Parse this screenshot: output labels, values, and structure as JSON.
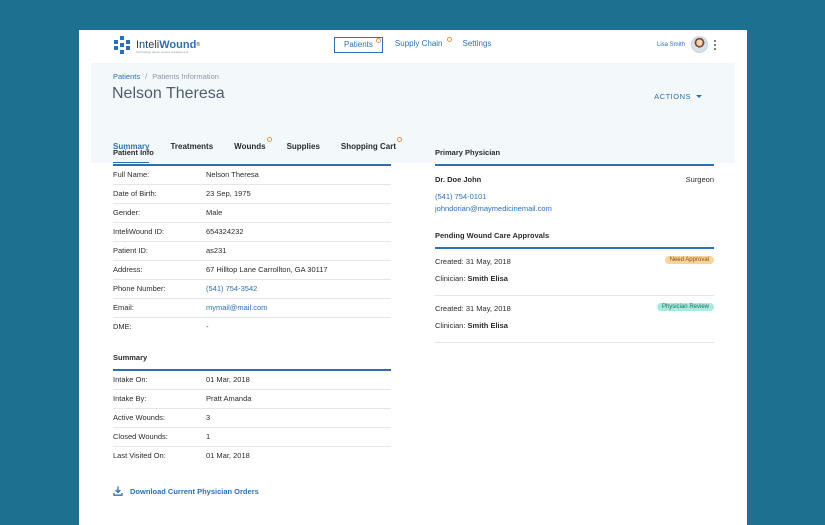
{
  "brand": {
    "name_light": "Inteli",
    "name_bold": "Wound",
    "registered": "®",
    "tagline": "Technology driven wound management"
  },
  "nav": {
    "items": [
      {
        "label": "Patients",
        "active": true,
        "notify": true
      },
      {
        "label": "Supply Chain",
        "active": false,
        "notify": true
      },
      {
        "label": "Settings",
        "active": false,
        "notify": false
      }
    ]
  },
  "user": {
    "name": "Lisa Smith",
    "avatar_icon": "avatar-photo",
    "menu_icon": "kebab-icon"
  },
  "breadcrumb": {
    "root": "Patients",
    "separator": "/",
    "current": "Patients Information"
  },
  "patient_title": "Nelson Theresa",
  "actions_label": "ACTIONS",
  "tabs": [
    {
      "label": "Summary",
      "active": true,
      "notify": false
    },
    {
      "label": "Treatments",
      "active": false,
      "notify": false
    },
    {
      "label": "Wounds",
      "active": false,
      "notify": true
    },
    {
      "label": "Supplies",
      "active": false,
      "notify": false
    },
    {
      "label": "Shopping Cart",
      "active": false,
      "notify": true
    }
  ],
  "patient_info": {
    "title": "Patient Info",
    "rows": [
      {
        "label": "Full Name:",
        "value": "Nelson Theresa"
      },
      {
        "label": "Date of Birth:",
        "value": "23 Sep, 1975"
      },
      {
        "label": "Gender:",
        "value": "Male"
      },
      {
        "label": "InteliWound ID:",
        "value": "654324232"
      },
      {
        "label": "Patient ID:",
        "value": "as231"
      },
      {
        "label": "Address:",
        "value": "67 Hilltop Lane Carrollton, GA 30117"
      },
      {
        "label": "Phone Number:",
        "value": "(541) 754-3542"
      },
      {
        "label": "Email:",
        "value": "mymail@mail.com"
      },
      {
        "label": "DME:",
        "value": "-"
      }
    ]
  },
  "summary": {
    "title": "Summary",
    "rows": [
      {
        "label": "Intake On:",
        "value": "01 Mar, 2018"
      },
      {
        "label": "Intake By:",
        "value": "Pratt Amanda"
      },
      {
        "label": "Active Wounds:",
        "value": "3"
      },
      {
        "label": "Closed Wounds:",
        "value": "1"
      },
      {
        "label": "Last Visited On:",
        "value": "01 Mar, 2018"
      }
    ]
  },
  "primary_physician": {
    "title": "Primary Physician",
    "name": "Dr. Doe John",
    "role": "Surgeon",
    "phone": "(541) 754-0101",
    "email": "johndorian@maymedicinemail.com"
  },
  "approvals": {
    "title": "Pending Wound Care Approvals",
    "items": [
      {
        "created": "Created: 31 May, 2018",
        "clinician_label": "Clinician:",
        "clinician": "Smith Elisa",
        "status": "Need Approval",
        "status_color": "#fbd49c"
      },
      {
        "created": "Created: 31 May, 2018",
        "clinician_label": "Clinician:",
        "clinician": "Smith Elisa",
        "status": "Physician Review",
        "status_color": "#a9eadf"
      }
    ]
  },
  "download_label": "Download Current Physician Orders",
  "colors": {
    "accent": "#2d6fb7",
    "background": "#1d7090",
    "notify": "#e8904a"
  }
}
